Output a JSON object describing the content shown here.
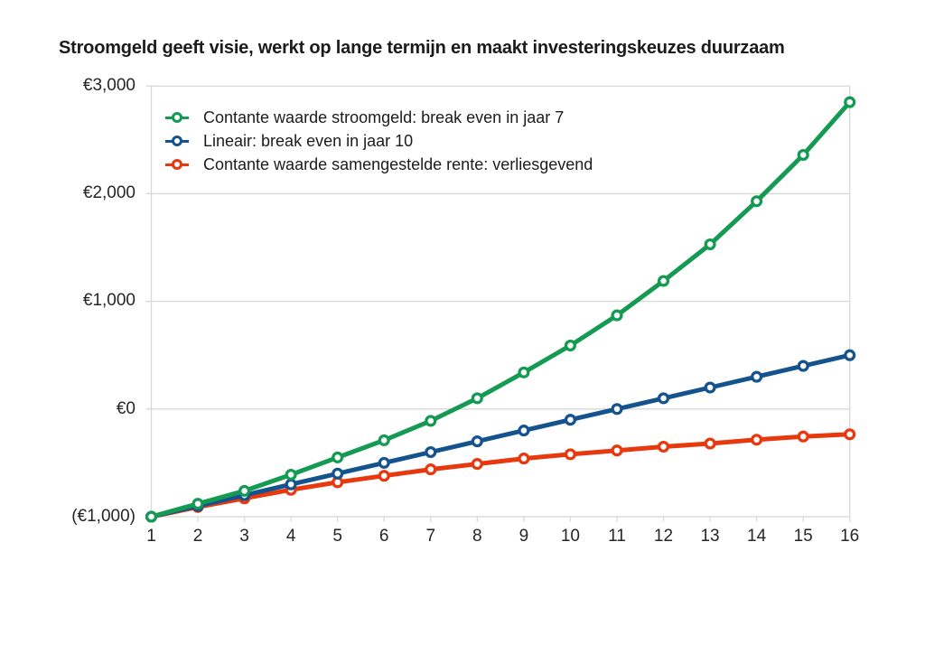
{
  "page": {
    "title": "Stroomgeld geeft visie, werkt op lange termijn en maakt investeringskeuzes duurzaam"
  },
  "colors": {
    "stroomgeld_green": "#149a52",
    "lineair_blue": "#15538e",
    "rente_red": "#e7380e",
    "gridline_gray": "#d8d8d8",
    "text_dark": "#1c1c1c"
  },
  "chart_data": {
    "type": "line",
    "title": "Stroomgeld geeft visie, werkt op lange termijn en maakt investeringskeuzes duurzaam",
    "xlabel": "",
    "ylabel": "",
    "x": [
      1,
      2,
      3,
      4,
      5,
      6,
      7,
      8,
      9,
      10,
      11,
      12,
      13,
      14,
      15,
      16
    ],
    "x_tick_labels": [
      "1",
      "2",
      "3",
      "4",
      "5",
      "6",
      "7",
      "8",
      "9",
      "10",
      "11",
      "12",
      "13",
      "14",
      "15",
      "16"
    ],
    "y_tick_labels": [
      "€3,000",
      "€2,000",
      "€1,000",
      "€0",
      "(€1,000)"
    ],
    "y_tick_values": [
      3000,
      2000,
      1000,
      0,
      -1000
    ],
    "ylim": [
      -1000,
      3000
    ],
    "grid": "horizontal",
    "legend_position": "top-left-inside",
    "marker_style": "open-circle",
    "series": [
      {
        "name": "Contante waarde stroomgeld: break even in jaar 7",
        "color": "#149a52",
        "values": [
          -1000,
          -880,
          -760,
          -610,
          -450,
          -290,
          -110,
          100,
          340,
          590,
          870,
          1190,
          1530,
          1930,
          2360,
          2850
        ]
      },
      {
        "name": "Lineair: break even in jaar 10",
        "color": "#15538e",
        "values": [
          -1000,
          -900,
          -800,
          -700,
          -600,
          -500,
          -400,
          -300,
          -200,
          -100,
          0,
          100,
          200,
          300,
          400,
          500
        ]
      },
      {
        "name": "Contante waarde samengestelde rente: verliesgevend",
        "color": "#e7380e",
        "values": [
          -1000,
          -910,
          -830,
          -750,
          -680,
          -620,
          -560,
          -510,
          -460,
          -420,
          -385,
          -350,
          -320,
          -285,
          -255,
          -235
        ]
      }
    ]
  }
}
